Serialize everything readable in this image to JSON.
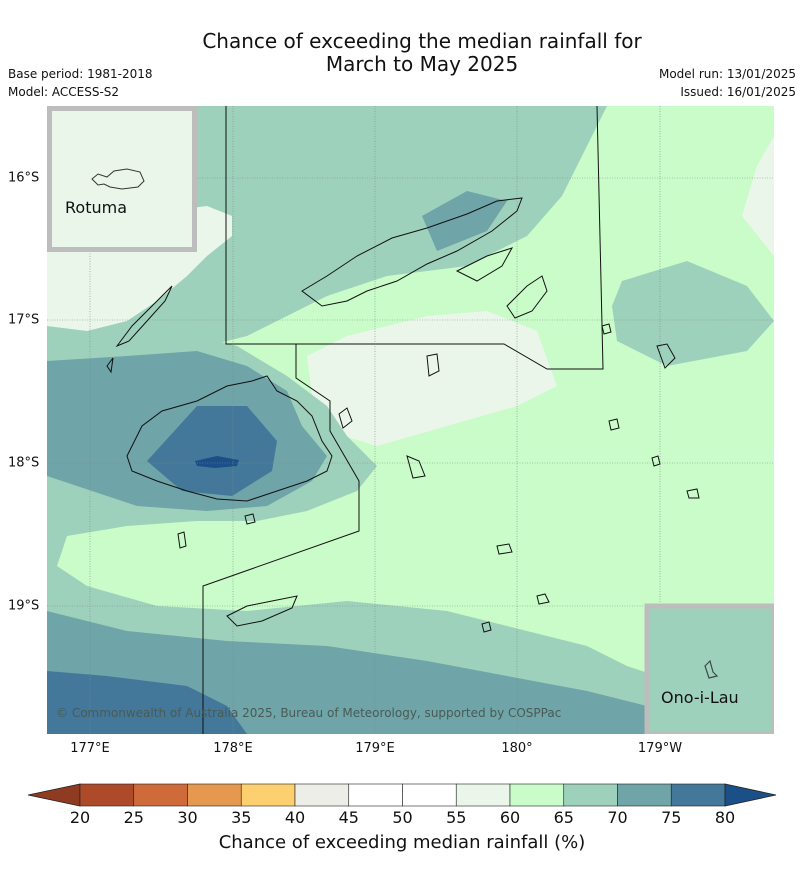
{
  "title_line1": "Chance of exceeding the median rainfall for",
  "title_line2": "March to May 2025",
  "base_period": "Base period: 1981-2018",
  "model": "Model: ACCESS-S2",
  "model_run": "Model run: 13/01/2025",
  "issued": "Issued: 16/01/2025",
  "lon_labels": [
    "177°E",
    "178°E",
    "179°E",
    "180°",
    "179°W"
  ],
  "lat_labels": [
    "16°S",
    "17°S",
    "18°S",
    "19°S"
  ],
  "inset_rotuma": "Rotuma",
  "inset_onoilau": "Ono-i-Lau",
  "copyright": "© Commonwealth of Australia 2025, Bureau of Meteorology, supported by COSPPac",
  "colorbar": {
    "ticks": [
      "20",
      "25",
      "30",
      "35",
      "40",
      "45",
      "50",
      "55",
      "60",
      "65",
      "70",
      "75",
      "80"
    ],
    "colors": [
      "#ad4a2a",
      "#cf6b3a",
      "#e4994e",
      "#fdd06f",
      "#eeeee9",
      "#ffffff",
      "#ffffff",
      "#ebf6ea",
      "#c9fcc9",
      "#9ed1bb",
      "#6fa4a8",
      "#43789a"
    ],
    "under_color": "#8f3b22",
    "over_color": "#1b4f87",
    "label": "Chance of exceeding median rainfall (%)"
  },
  "map_colors": {
    "c55_60": "#ebf6ea",
    "c60_65": "#c9fcc9",
    "c65_70": "#9ed1bb",
    "c70_75": "#6fa4a8",
    "c75_80": "#43789a",
    "c80plus": "#1b4f87"
  }
}
